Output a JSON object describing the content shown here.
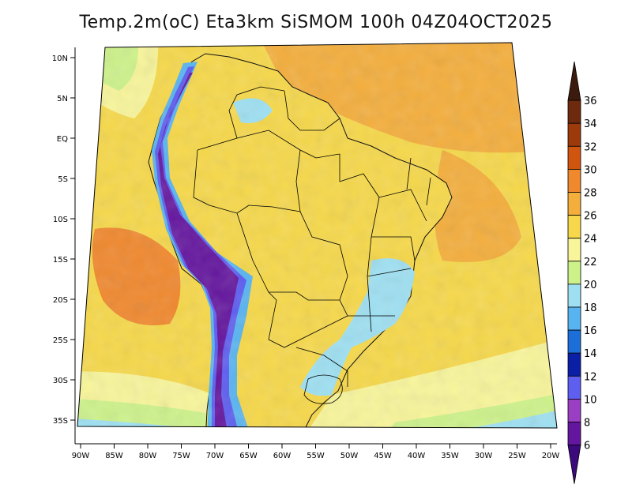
{
  "title": "Temp.2m(oC) Eta3km SiSMOM 100h 04Z04OCT2025",
  "lat_labels": [
    "10N",
    "5N",
    "EQ",
    "5S",
    "10S",
    "15S",
    "20S",
    "25S",
    "30S",
    "35S"
  ],
  "lon_labels": [
    "90W",
    "85W",
    "80W",
    "75W",
    "70W",
    "65W",
    "60W",
    "55W",
    "50W",
    "45W",
    "40W",
    "35W",
    "30W",
    "25W",
    "20W"
  ],
  "colorbar": {
    "labels": [
      "36",
      "34",
      "32",
      "30",
      "28",
      "26",
      "24",
      "22",
      "20",
      "18",
      "16",
      "14",
      "12",
      "10",
      "8",
      "6"
    ],
    "colors": [
      "#3c1a0e",
      "#6e2a0e",
      "#9c3a0c",
      "#d0560f",
      "#f0882e",
      "#f4ae3c",
      "#f6d84a",
      "#f8f59a",
      "#cdf28a",
      "#9ee0f2",
      "#58b4f0",
      "#1c6fd8",
      "#0a1fa6",
      "#5e5ef0",
      "#9a3ec4",
      "#64169e",
      "#3c0a7c"
    ]
  },
  "map_colors": {
    "ocean_north": "#f4ae3c",
    "ocean_central": "#f6d84a",
    "ocean_warm": "#f0882e",
    "ocean_cool": "#f8f59a",
    "ocean_south": "#cdf28a",
    "ocean_cold": "#9ee0f2",
    "land_base": "#f6d84a",
    "andes_high": "#64169e",
    "andes_mid": "#5e5ef0",
    "andes_low": "#58b4f0",
    "highland_se": "#9ee0f2",
    "coast_line": "#000000"
  }
}
